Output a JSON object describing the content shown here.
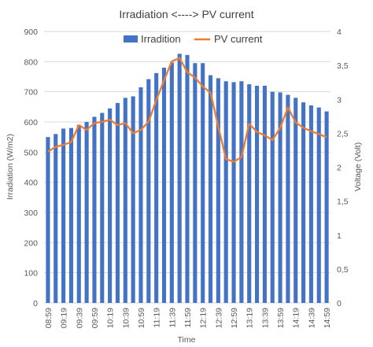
{
  "chart_data": {
    "type": "bar+line",
    "title": "Irradiation <----> PV current",
    "xlabel": "Time",
    "ylabel_left": "Irradiation (W/m2)",
    "ylabel_right": "Voltage (Volt)",
    "ylim_left": [
      0,
      900
    ],
    "ylim_right": [
      0,
      4
    ],
    "yticks_left": [
      "0",
      "100",
      "200",
      "300",
      "400",
      "500",
      "600",
      "700",
      "800",
      "900"
    ],
    "yticks_right": [
      "0",
      "0,5",
      "1",
      "1,5",
      "2",
      "2,5",
      "3",
      "3,5",
      "4"
    ],
    "xtick_labels": [
      "08:59",
      "09:19",
      "09:39",
      "09:59",
      "10:19",
      "10:39",
      "10:59",
      "11:19",
      "11:39",
      "11:59",
      "12:19",
      "12:39",
      "12:59",
      "13:19",
      "13:39",
      "13:59",
      "14:19",
      "14:39",
      "14:59"
    ],
    "legend_position": "top",
    "grid": true,
    "colors": {
      "bars": "#4472c4",
      "line": "#ed7d31",
      "grid": "#d9d9d9"
    },
    "series": [
      {
        "name": "Irradition",
        "kind": "bar",
        "axis": "left",
        "values": [
          550,
          560,
          578,
          580,
          590,
          600,
          617,
          630,
          645,
          663,
          680,
          685,
          715,
          742,
          762,
          780,
          797,
          826,
          822,
          795,
          795,
          755,
          745,
          735,
          732,
          735,
          725,
          720,
          720,
          700,
          698,
          690,
          680,
          665,
          655,
          648,
          635
        ]
      },
      {
        "name": "PV current",
        "kind": "line",
        "axis": "right",
        "values": [
          2.23,
          2.3,
          2.33,
          2.37,
          2.62,
          2.55,
          2.65,
          2.67,
          2.7,
          2.62,
          2.65,
          2.5,
          2.55,
          2.67,
          2.99,
          3.28,
          3.56,
          3.61,
          3.4,
          3.32,
          3.19,
          3.1,
          2.6,
          2.12,
          2.08,
          2.15,
          2.64,
          2.52,
          2.47,
          2.4,
          2.58,
          2.88,
          2.66,
          2.58,
          2.53,
          2.49,
          2.44
        ]
      }
    ]
  }
}
